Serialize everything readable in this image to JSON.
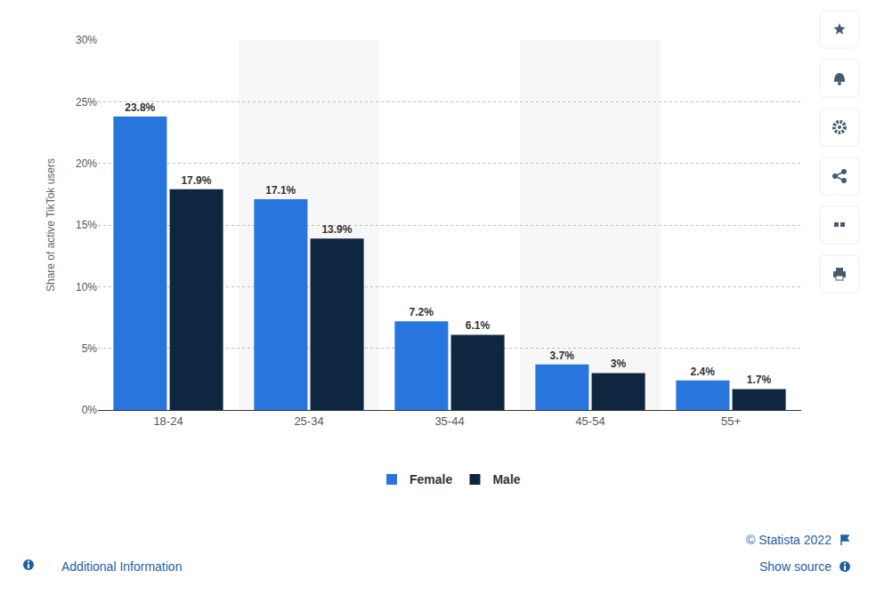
{
  "chart_data": {
    "type": "bar",
    "y_label": "Share of active TikTok users",
    "categories": [
      "18-24",
      "25-34",
      "35-44",
      "45-54",
      "55+"
    ],
    "series": [
      {
        "name": "Female",
        "color": "#2876dd",
        "values": [
          23.8,
          17.1,
          7.2,
          3.7,
          2.4
        ],
        "value_labels": [
          "23.8%",
          "17.1%",
          "7.2%",
          "3.7%",
          "2.4%"
        ]
      },
      {
        "name": "Male",
        "color": "#0f2640",
        "values": [
          17.9,
          13.9,
          6.1,
          3,
          1.7
        ],
        "value_labels": [
          "17.9%",
          "13.9%",
          "6.1%",
          "3%",
          "1.7%"
        ]
      }
    ],
    "ylim": [
      0,
      30
    ],
    "yticks": [
      {
        "value": 0,
        "label": "0%"
      },
      {
        "value": 5,
        "label": "5%"
      },
      {
        "value": 10,
        "label": "10%"
      },
      {
        "value": 15,
        "label": "15%"
      },
      {
        "value": 20,
        "label": "20%"
      },
      {
        "value": 25,
        "label": "25%"
      },
      {
        "value": 30,
        "label": "30%"
      }
    ],
    "grid": true,
    "legend": "bottom",
    "data_labels": true,
    "annotations": [
      "© Statista 2022",
      "Show source",
      "Additional Information"
    ]
  }
}
